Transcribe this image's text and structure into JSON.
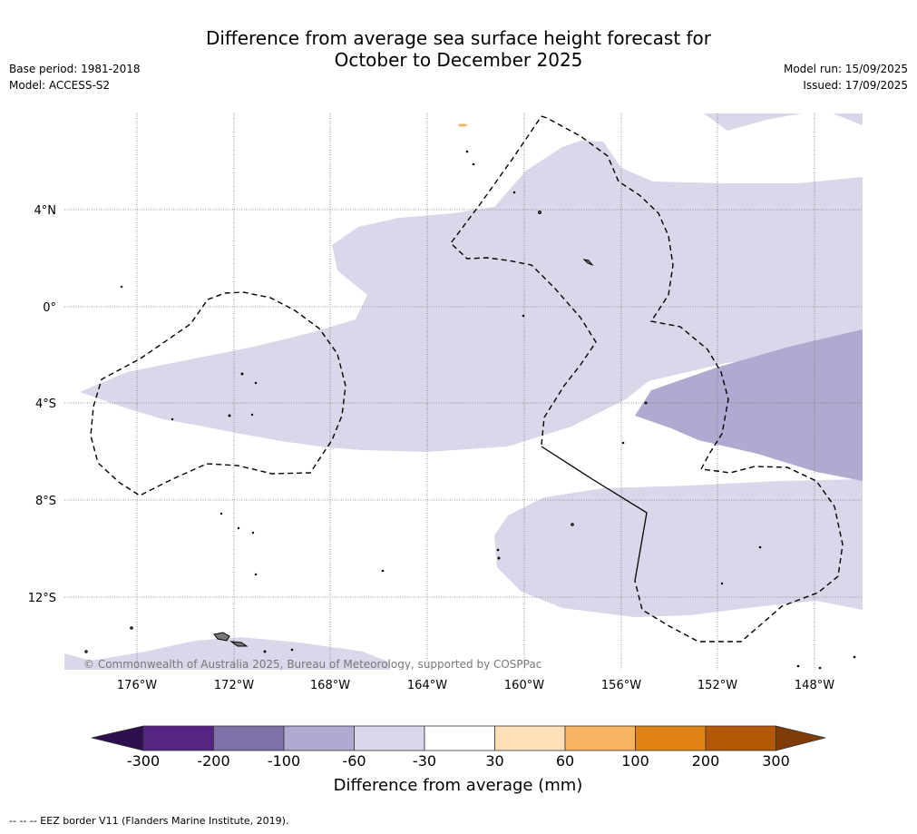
{
  "header": {
    "title_line1": "Difference from average sea surface height forecast for",
    "title_line2": "October to December 2025",
    "base_period": "Base period: 1981-2018",
    "model": "Model: ACCESS-S2",
    "model_run": "Model run: 15/09/2025",
    "issued": "Issued: 17/09/2025"
  },
  "map": {
    "copyright": "© Commonwealth of Australia 2025, Bureau of Meteorology, supported by COSPPac",
    "lat_labels": [
      "4°N",
      "0°",
      "4°S",
      "8°S",
      "12°S"
    ],
    "lon_labels": [
      "176°W",
      "172°W",
      "168°W",
      "164°W",
      "160°W",
      "156°W",
      "152°W",
      "148°W"
    ]
  },
  "legend": {
    "title": "Difference from average (mm)",
    "ticks": [
      "-300",
      "-200",
      "-100",
      "-60",
      "-30",
      "30",
      "60",
      "100",
      "200",
      "300"
    ],
    "colors": [
      "#2e0f4f",
      "#562482",
      "#8070aa",
      "#b0aad0",
      "#d8d8ea",
      "#ffffff",
      "#fde0b8",
      "#f8b460",
      "#e08216",
      "#b35806",
      "#7f3b08"
    ]
  },
  "footer": {
    "eez_note": "--  --  -- EEZ border V11 (Flanders Marine Institute, 2019)."
  }
}
